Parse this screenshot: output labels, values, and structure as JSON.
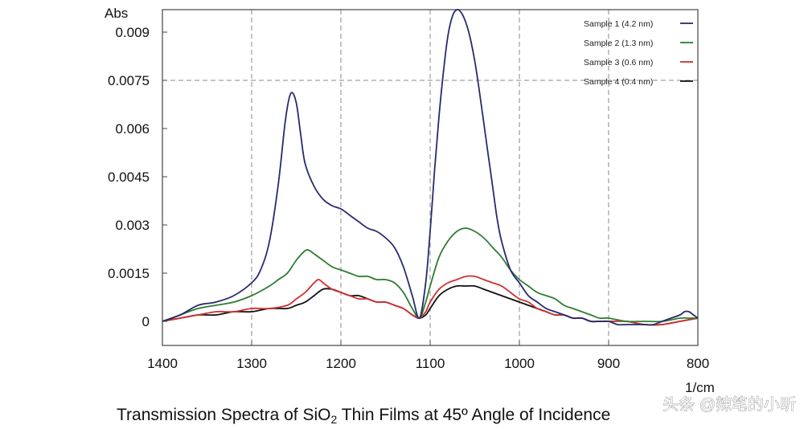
{
  "chart_data": {
    "type": "line",
    "title": "Transmission Spectra of SiO₂ Thin Films at 45º Angle of Incidence",
    "ylabel": "Abs",
    "xlabel": "1/cm",
    "xlim": [
      1400,
      800
    ],
    "ylim": [
      -0.00075,
      0.0097
    ],
    "x_ticks": [
      1400,
      1300,
      1200,
      1100,
      1000,
      900,
      800
    ],
    "x_tick_labels": [
      "1400",
      "1300",
      "1200",
      "1100",
      "1000",
      "900",
      "800"
    ],
    "y_ticks": [
      0,
      0.0015,
      0.003,
      0.0045,
      0.006,
      0.0075,
      0.009
    ],
    "y_tick_labels": [
      "0",
      "0.0015",
      "0.003",
      "0.0045",
      "0.006",
      "0.0075",
      "0.009"
    ],
    "grid_x": [
      1300,
      1200,
      1100,
      1000,
      900
    ],
    "grid_y": [
      0.0075
    ],
    "legend_position": "top-right",
    "series": [
      {
        "name": "Sample 1 (4.2 nm)",
        "color": "#2a2a6e",
        "x": [
          1400,
          1380,
          1360,
          1340,
          1320,
          1300,
          1290,
          1280,
          1270,
          1262,
          1256,
          1250,
          1245,
          1240,
          1230,
          1220,
          1210,
          1200,
          1190,
          1180,
          1170,
          1160,
          1150,
          1140,
          1130,
          1120,
          1112,
          1105,
          1100,
          1095,
          1090,
          1085,
          1080,
          1075,
          1070,
          1065,
          1060,
          1055,
          1050,
          1045,
          1040,
          1035,
          1030,
          1025,
          1020,
          1010,
          1000,
          990,
          980,
          970,
          960,
          950,
          940,
          930,
          920,
          910,
          900,
          890,
          880,
          870,
          860,
          850,
          840,
          830,
          820,
          815,
          810,
          805,
          800
        ],
        "y": [
          0,
          0.0002,
          0.0005,
          0.0006,
          0.0008,
          0.0012,
          0.0016,
          0.0025,
          0.0043,
          0.0063,
          0.0071,
          0.0068,
          0.0058,
          0.0049,
          0.0042,
          0.0038,
          0.0036,
          0.0035,
          0.0033,
          0.0031,
          0.0029,
          0.0028,
          0.0026,
          0.0023,
          0.0017,
          0.0008,
          0.0001,
          0.0012,
          0.0028,
          0.0047,
          0.0064,
          0.0078,
          0.0089,
          0.0095,
          0.0097,
          0.0096,
          0.0093,
          0.0088,
          0.0081,
          0.0072,
          0.0062,
          0.0052,
          0.0042,
          0.0032,
          0.0025,
          0.0016,
          0.0012,
          0.0008,
          0.0006,
          0.0004,
          0.0003,
          0.0002,
          0.0001,
          0.0001,
          0.0,
          0.0,
          0.0,
          -0.0001,
          -0.0001,
          -0.0001,
          -0.0001,
          -0.0001,
          0.0,
          0.0001,
          0.0002,
          0.0003,
          0.0003,
          0.0002,
          0.0001
        ]
      },
      {
        "name": "Sample 2 (1.3 nm)",
        "color": "#2e7d32",
        "x": [
          1400,
          1380,
          1360,
          1340,
          1320,
          1300,
          1280,
          1270,
          1260,
          1250,
          1240,
          1235,
          1230,
          1220,
          1210,
          1200,
          1190,
          1180,
          1170,
          1160,
          1150,
          1140,
          1130,
          1120,
          1112,
          1105,
          1100,
          1090,
          1080,
          1070,
          1060,
          1050,
          1040,
          1030,
          1020,
          1010,
          1000,
          990,
          980,
          970,
          960,
          950,
          940,
          930,
          920,
          910,
          900,
          880,
          860,
          840,
          820,
          810,
          800
        ],
        "y": [
          0,
          0.0002,
          0.0004,
          0.0005,
          0.0006,
          0.0008,
          0.0011,
          0.0013,
          0.0015,
          0.0019,
          0.0022,
          0.0022,
          0.0021,
          0.0019,
          0.0017,
          0.0016,
          0.0015,
          0.0014,
          0.0014,
          0.0013,
          0.0013,
          0.0012,
          0.0009,
          0.0004,
          0.0001,
          0.0006,
          0.0011,
          0.002,
          0.0025,
          0.0028,
          0.0029,
          0.0028,
          0.0026,
          0.0023,
          0.002,
          0.0016,
          0.0013,
          0.0011,
          0.0009,
          0.0008,
          0.0007,
          0.0005,
          0.0004,
          0.0003,
          0.0002,
          0.0001,
          0.0001,
          0.0,
          0.0,
          0.0,
          0.0001,
          0.0001,
          0.0001
        ]
      },
      {
        "name": "Sample 3 (0.6 nm)",
        "color": "#d32f2f",
        "x": [
          1400,
          1380,
          1360,
          1340,
          1320,
          1300,
          1280,
          1260,
          1250,
          1240,
          1230,
          1225,
          1220,
          1210,
          1200,
          1190,
          1180,
          1170,
          1160,
          1150,
          1140,
          1130,
          1120,
          1112,
          1105,
          1100,
          1090,
          1080,
          1070,
          1060,
          1050,
          1040,
          1030,
          1020,
          1010,
          1000,
          990,
          980,
          970,
          960,
          950,
          940,
          930,
          920,
          910,
          900,
          880,
          860,
          840,
          820,
          800
        ],
        "y": [
          0,
          0.0001,
          0.0002,
          0.0003,
          0.0003,
          0.0004,
          0.0004,
          0.0005,
          0.0007,
          0.0009,
          0.0012,
          0.0013,
          0.0012,
          0.001,
          0.0009,
          0.0008,
          0.0007,
          0.0007,
          0.0006,
          0.0006,
          0.0005,
          0.0004,
          0.0002,
          0.0001,
          0.0003,
          0.0006,
          0.001,
          0.0012,
          0.0013,
          0.0014,
          0.0014,
          0.0013,
          0.0012,
          0.0011,
          0.0009,
          0.0007,
          0.0006,
          0.0004,
          0.0003,
          0.0002,
          0.0002,
          0.0001,
          0.0001,
          0.0,
          0.0,
          0.0,
          0.0,
          -0.0001,
          -0.0001,
          0.0,
          0.0001
        ]
      },
      {
        "name": "Sample 4 (0.4 nm)",
        "color": "#111111",
        "x": [
          1400,
          1380,
          1360,
          1340,
          1320,
          1300,
          1280,
          1260,
          1250,
          1240,
          1230,
          1220,
          1210,
          1200,
          1190,
          1180,
          1170,
          1160,
          1150,
          1140,
          1130,
          1120,
          1112,
          1105,
          1100,
          1090,
          1080,
          1070,
          1060,
          1050,
          1040,
          1030,
          1020,
          1010,
          1000,
          990,
          980,
          970,
          960,
          950,
          940,
          930,
          920,
          910,
          900,
          880,
          860,
          840,
          820,
          800
        ],
        "y": [
          0,
          0.0001,
          0.0002,
          0.0002,
          0.0003,
          0.0003,
          0.0004,
          0.0004,
          0.0005,
          0.0006,
          0.0008,
          0.001,
          0.001,
          0.0009,
          0.0008,
          0.0008,
          0.0007,
          0.0006,
          0.0006,
          0.0005,
          0.0004,
          0.0002,
          0.0001,
          0.0002,
          0.0004,
          0.0008,
          0.001,
          0.0011,
          0.0011,
          0.0011,
          0.001,
          0.0009,
          0.0008,
          0.0007,
          0.0006,
          0.0005,
          0.0004,
          0.0003,
          0.0002,
          0.0002,
          0.0001,
          0.0001,
          0.0,
          0.0,
          0.0,
          0.0,
          -0.0001,
          -0.0001,
          0.0,
          0.0001
        ]
      }
    ]
  },
  "figure": {
    "caption_prefix": "Transmission Spectra of SiO",
    "caption_subscript": "2",
    "caption_suffix": " Thin Films at 45º Angle of Incidence",
    "watermark": "头条 @辣笔的小昕"
  }
}
